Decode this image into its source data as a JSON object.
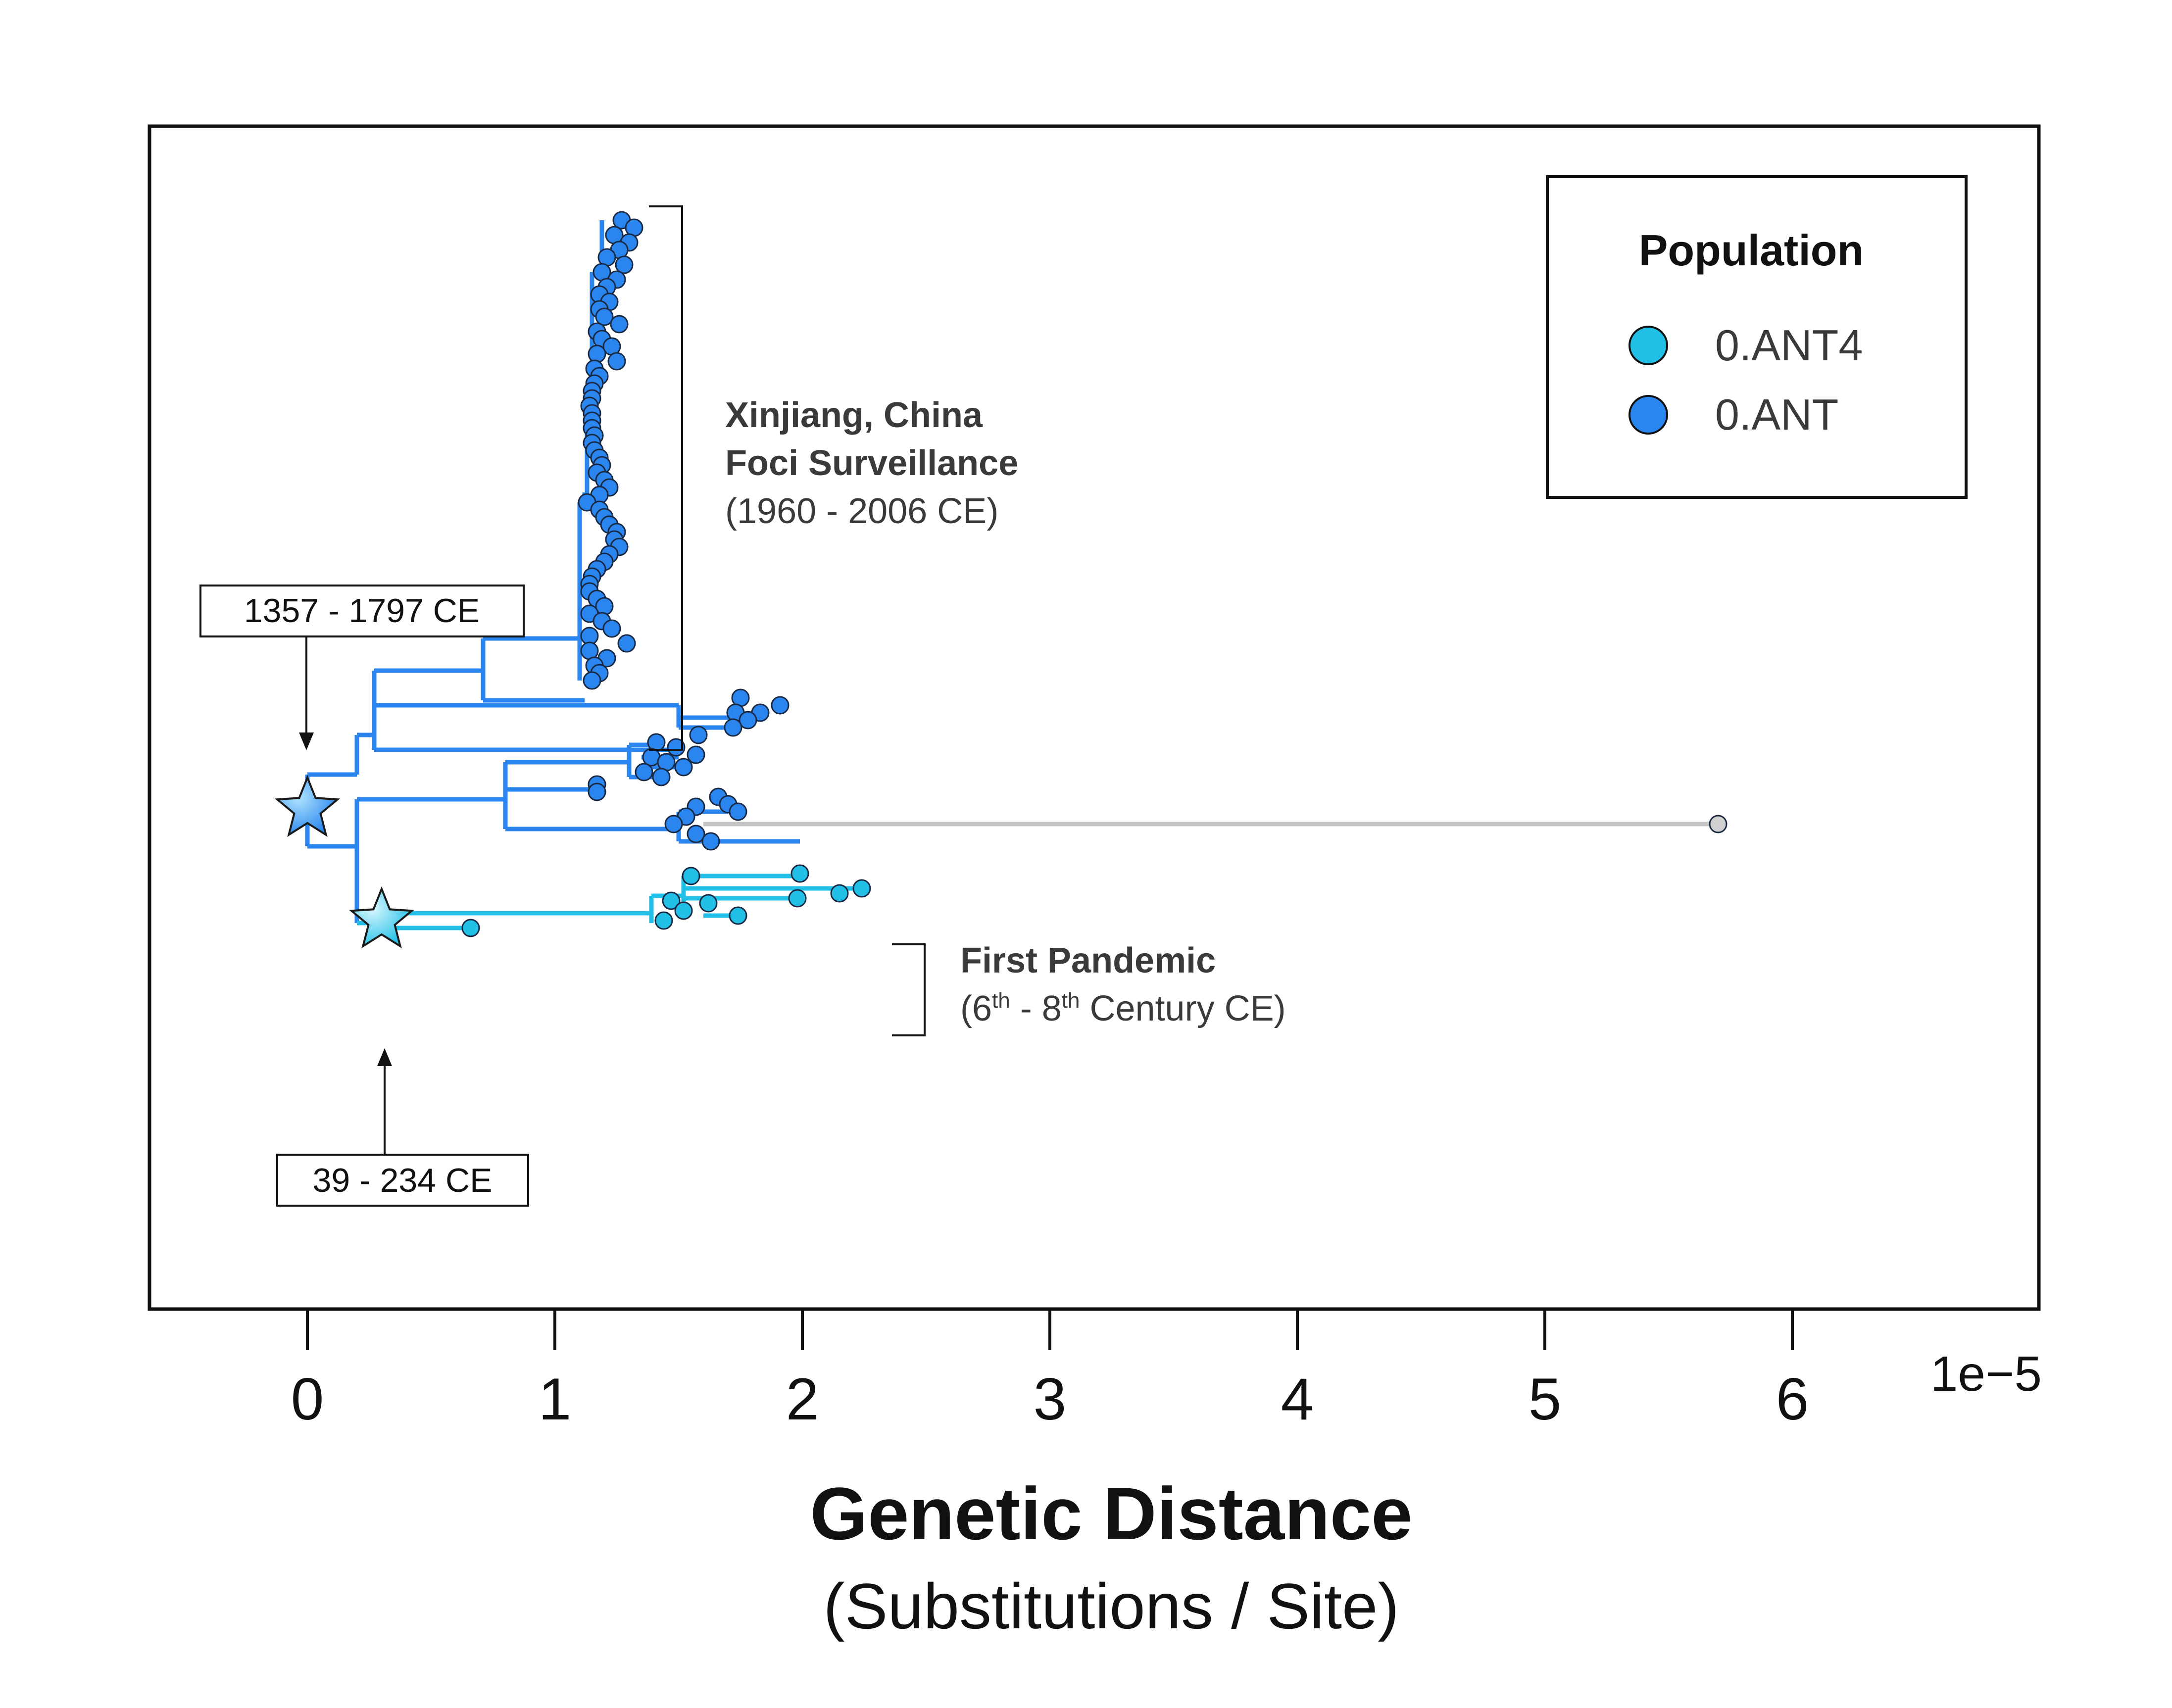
{
  "chart_data": {
    "type": "scatter",
    "title": "",
    "xlabel": "Genetic Distance",
    "xlabel_sub": "(Substitutions / Site)",
    "x_scale_label": "1e−5",
    "xlim": [
      -0.64,
      7.02
    ],
    "xticks": [
      0,
      1,
      2,
      3,
      4,
      5,
      6
    ],
    "xtick_labels": [
      "0",
      "1",
      "2",
      "3",
      "4",
      "5",
      "6"
    ],
    "grid": false,
    "legend": {
      "title": "Population",
      "position": "top-right",
      "entries": [
        {
          "label": "0.ANT4",
          "color": "#22c0e6"
        },
        {
          "label": "0.ANT",
          "color": "#2a86ee"
        }
      ]
    },
    "colors": {
      "ant": "#2a86ee",
      "ant4": "#22c0e6",
      "long_branch": "#c4c4c4",
      "long_tip": "#d0d0d0"
    },
    "annotations": {
      "xinjiang_title_1": "Xinjiang, China",
      "xinjiang_title_2": "Foci Surveillance",
      "xinjiang_dates": "(1960 - 2006 CE)",
      "first_pandemic_title": "First Pandemic",
      "first_pandemic_pre": "(6",
      "first_pandemic_sup1": "th",
      "first_pandemic_mid": " - 8",
      "first_pandemic_sup2": "th",
      "first_pandemic_post": " Century CE)",
      "node_date_upper": "1357 - 1797 CE",
      "node_date_lower": "39 - 234 CE"
    },
    "series": [
      {
        "name": "0.ANT",
        "values": [
          [
            1.27,
            0.5
          ],
          [
            1.32,
            0.8
          ],
          [
            1.24,
            1.1
          ],
          [
            1.3,
            1.4
          ],
          [
            1.26,
            1.7
          ],
          [
            1.21,
            2.0
          ],
          [
            1.28,
            2.3
          ],
          [
            1.19,
            2.6
          ],
          [
            1.25,
            2.9
          ],
          [
            1.21,
            3.2
          ],
          [
            1.18,
            3.5
          ],
          [
            1.22,
            3.8
          ],
          [
            1.18,
            4.1
          ],
          [
            1.2,
            4.4
          ],
          [
            1.26,
            4.7
          ],
          [
            1.17,
            5.0
          ],
          [
            1.19,
            5.3
          ],
          [
            1.23,
            5.6
          ],
          [
            1.17,
            5.9
          ],
          [
            1.25,
            6.2
          ],
          [
            1.16,
            6.5
          ],
          [
            1.18,
            6.8
          ],
          [
            1.16,
            7.1
          ],
          [
            1.15,
            7.4
          ],
          [
            1.15,
            7.7
          ],
          [
            1.14,
            8.0
          ],
          [
            1.15,
            8.3
          ],
          [
            1.15,
            8.6
          ],
          [
            1.15,
            8.9
          ],
          [
            1.16,
            9.2
          ],
          [
            1.15,
            9.5
          ],
          [
            1.16,
            9.8
          ],
          [
            1.18,
            10.1
          ],
          [
            1.19,
            10.4
          ],
          [
            1.17,
            10.7
          ],
          [
            1.2,
            11.0
          ],
          [
            1.22,
            11.3
          ],
          [
            1.18,
            11.6
          ],
          [
            1.13,
            11.9
          ],
          [
            1.18,
            12.2
          ],
          [
            1.2,
            12.5
          ],
          [
            1.22,
            12.8
          ],
          [
            1.25,
            13.1
          ],
          [
            1.24,
            13.4
          ],
          [
            1.26,
            13.7
          ],
          [
            1.22,
            14.0
          ],
          [
            1.2,
            14.3
          ],
          [
            1.17,
            14.6
          ],
          [
            1.15,
            14.9
          ],
          [
            1.14,
            15.2
          ],
          [
            1.14,
            15.5
          ],
          [
            1.17,
            15.8
          ],
          [
            1.2,
            16.1
          ],
          [
            1.14,
            16.4
          ],
          [
            1.19,
            16.7
          ],
          [
            1.23,
            17.0
          ],
          [
            1.14,
            17.3
          ],
          [
            1.29,
            17.6
          ],
          [
            1.14,
            17.9
          ],
          [
            1.21,
            18.2
          ],
          [
            1.16,
            18.5
          ],
          [
            1.18,
            18.8
          ],
          [
            1.15,
            19.1
          ],
          [
            1.75,
            19.8
          ],
          [
            1.91,
            20.1
          ],
          [
            1.73,
            20.4
          ],
          [
            1.83,
            20.4
          ],
          [
            1.78,
            20.7
          ],
          [
            1.72,
            21.0
          ],
          [
            1.58,
            21.3
          ],
          [
            1.41,
            21.6
          ],
          [
            1.49,
            21.8
          ],
          [
            1.57,
            22.1
          ],
          [
            1.39,
            22.2
          ],
          [
            1.45,
            22.4
          ],
          [
            1.52,
            22.6
          ],
          [
            1.36,
            22.8
          ],
          [
            1.43,
            23.0
          ],
          [
            1.17,
            23.3
          ],
          [
            1.17,
            23.6
          ],
          [
            1.66,
            23.8
          ],
          [
            1.7,
            24.1
          ],
          [
            1.57,
            24.2
          ],
          [
            1.74,
            24.4
          ],
          [
            1.53,
            24.6
          ],
          [
            1.48,
            24.9
          ],
          [
            1.57,
            25.3
          ],
          [
            1.63,
            25.6
          ]
        ]
      },
      {
        "name": "",
        "values": [
          [
            5.7,
            24.9
          ]
        ]
      },
      {
        "name": "0.ANT4",
        "values": [
          [
            1.55,
            27.0
          ],
          [
            1.99,
            26.9
          ],
          [
            2.24,
            27.5
          ],
          [
            2.15,
            27.7
          ],
          [
            1.98,
            27.9
          ],
          [
            1.47,
            28.0
          ],
          [
            1.62,
            28.1
          ],
          [
            1.52,
            28.4
          ],
          [
            1.74,
            28.6
          ],
          [
            1.44,
            28.8
          ],
          [
            0.66,
            29.1
          ]
        ]
      }
    ]
  }
}
